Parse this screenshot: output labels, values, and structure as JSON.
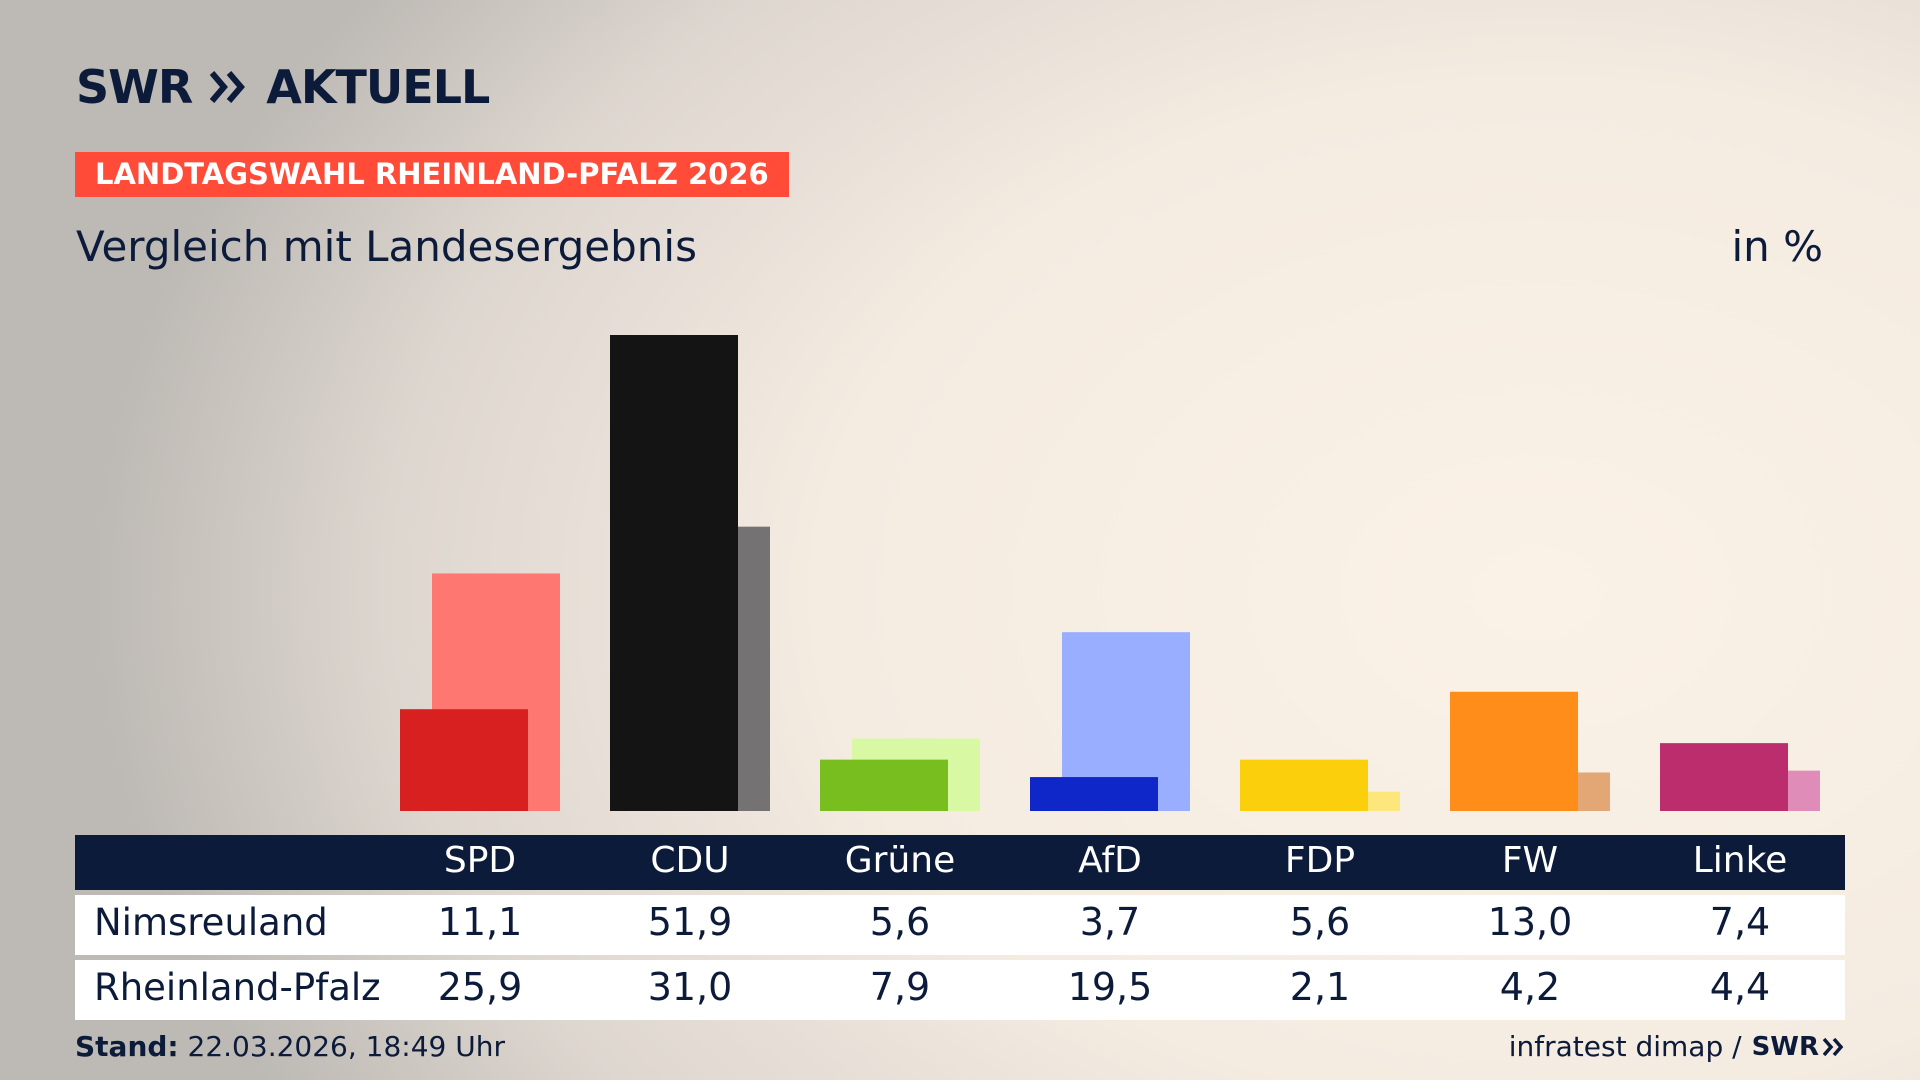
{
  "header": {
    "logo_text": "SWR",
    "logo_suffix": "AKTUELL",
    "badge": "LANDTAGSWAHL RHEINLAND-PFALZ 2026",
    "subtitle": "Vergleich mit Landesergebnis",
    "unit": "in %"
  },
  "colors": {
    "navy": "#0d1b3b",
    "badge": "#ff4b38"
  },
  "chart_data": {
    "type": "bar",
    "title": "Vergleich mit Landesergebnis",
    "ylabel": "in %",
    "categories": [
      "SPD",
      "CDU",
      "Grüne",
      "AfD",
      "FDP",
      "FW",
      "Linke"
    ],
    "series": [
      {
        "name": "Nimsreuland",
        "values": [
          11.1,
          51.9,
          5.6,
          3.7,
          5.6,
          13.0,
          7.4
        ],
        "labels": [
          "11,1",
          "51,9",
          "5,6",
          "3,7",
          "5,6",
          "13,0",
          "7,4"
        ],
        "colors": [
          "#d82020",
          "#141414",
          "#78be1e",
          "#0f27c9",
          "#fbcf0c",
          "#ff8d1a",
          "#bb2d6d"
        ]
      },
      {
        "name": "Rheinland-Pfalz",
        "values": [
          25.9,
          31.0,
          7.9,
          19.5,
          2.1,
          4.2,
          4.4
        ],
        "labels": [
          "25,9",
          "31,0",
          "7,9",
          "19,5",
          "2,1",
          "4,2",
          "4,4"
        ],
        "colors": [
          "#ff7770",
          "#747272",
          "#d8f8a4",
          "#9aaeff",
          "#fde67b",
          "#e3a775",
          "#e08cb8"
        ]
      }
    ],
    "ylim": [
      0,
      51.9
    ],
    "grid": false,
    "legend": "table-below"
  },
  "footer": {
    "stand_label": "Stand:",
    "stand_value": "22.03.2026, 18:49 Uhr",
    "source": "infratest dimap /",
    "source_logo": "SWR"
  }
}
